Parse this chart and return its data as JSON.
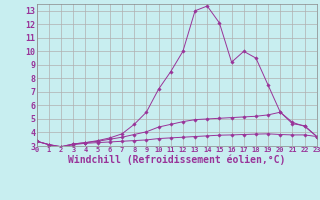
{
  "background_color": "#c8eef0",
  "grid_color": "#b0b0b0",
  "line_color": "#993399",
  "marker_color": "#993399",
  "xlabel": "Windchill (Refroidissement éolien,°C)",
  "xlim": [
    0,
    23
  ],
  "ylim": [
    3,
    13.5
  ],
  "yticks": [
    3,
    4,
    5,
    6,
    7,
    8,
    9,
    10,
    11,
    12,
    13
  ],
  "xticks": [
    0,
    1,
    2,
    3,
    4,
    5,
    6,
    7,
    8,
    9,
    10,
    11,
    12,
    13,
    14,
    15,
    16,
    17,
    18,
    19,
    20,
    21,
    22,
    23
  ],
  "series": [
    [
      3.35,
      3.1,
      2.9,
      3.1,
      3.2,
      3.25,
      3.3,
      3.35,
      3.4,
      3.45,
      3.55,
      3.6,
      3.65,
      3.7,
      3.75,
      3.8,
      3.82,
      3.85,
      3.88,
      3.9,
      3.85,
      3.82,
      3.82,
      3.7
    ],
    [
      3.35,
      3.1,
      2.95,
      3.15,
      3.25,
      3.35,
      3.5,
      3.65,
      3.85,
      4.05,
      4.4,
      4.6,
      4.8,
      4.95,
      5.0,
      5.05,
      5.1,
      5.15,
      5.2,
      5.3,
      5.5,
      4.65,
      4.5,
      3.7
    ],
    [
      3.35,
      3.1,
      2.95,
      3.15,
      3.25,
      3.4,
      3.6,
      3.9,
      4.6,
      5.5,
      7.2,
      8.5,
      10.0,
      13.0,
      13.35,
      12.1,
      9.2,
      10.0,
      9.5,
      7.5,
      5.5,
      4.75,
      4.45,
      3.7
    ]
  ]
}
